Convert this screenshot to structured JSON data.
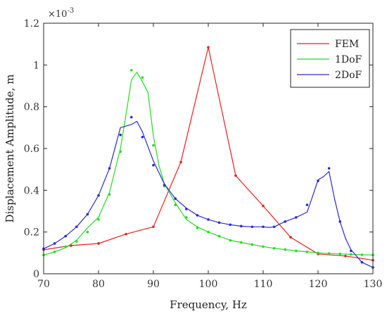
{
  "chart_data": {
    "type": "line",
    "title": "",
    "xlabel": "Frequency, Hz",
    "ylabel": "Displacement Amplitude, m",
    "y_exponent_label": "×10",
    "y_exponent_power": "-3",
    "xlim": [
      70,
      130
    ],
    "ylim": [
      0,
      1.2
    ],
    "xticks": [
      "70",
      "80",
      "90",
      "100",
      "110",
      "120",
      "130"
    ],
    "yticks": [
      "0",
      "0.2",
      "0.4",
      "0.6",
      "0.8",
      "1",
      "1.2"
    ],
    "grid": false,
    "legend_position": "top-right",
    "series": [
      {
        "name": "FEM",
        "color": "#e8201e",
        "line": {
          "x": [
            70,
            75,
            80,
            85,
            90,
            95,
            100,
            105,
            110,
            115,
            120,
            125,
            130
          ],
          "y": [
            0.115,
            0.135,
            0.145,
            0.19,
            0.225,
            0.535,
            1.085,
            0.47,
            0.325,
            0.175,
            0.095,
            0.085,
            0.065
          ]
        },
        "markers": {
          "x": [
            70,
            75,
            80,
            85,
            90,
            95,
            100,
            105,
            110,
            115,
            120,
            125,
            130
          ],
          "y": [
            0.115,
            0.135,
            0.145,
            0.19,
            0.225,
            0.535,
            1.085,
            0.47,
            0.325,
            0.175,
            0.095,
            0.085,
            0.065
          ]
        }
      },
      {
        "name": "1DoF",
        "color": "#22dd22",
        "line": {
          "x": [
            70,
            72,
            74,
            76,
            78,
            80,
            82,
            84,
            85,
            86,
            87,
            88,
            89,
            90,
            91,
            92,
            94,
            96,
            98,
            100,
            102,
            104,
            106,
            108,
            110,
            112,
            114,
            116,
            118,
            120,
            122,
            124,
            126,
            128,
            130
          ],
          "y": [
            0.09,
            0.105,
            0.125,
            0.16,
            0.22,
            0.27,
            0.39,
            0.6,
            0.76,
            0.93,
            0.965,
            0.92,
            0.87,
            0.66,
            0.52,
            0.43,
            0.34,
            0.26,
            0.225,
            0.2,
            0.18,
            0.16,
            0.15,
            0.14,
            0.13,
            0.122,
            0.116,
            0.11,
            0.105,
            0.1,
            0.097,
            0.095,
            0.093,
            0.091,
            0.09
          ]
        },
        "markers": {
          "x": [
            70,
            72,
            74,
            76,
            78,
            80,
            82,
            84,
            86,
            88,
            90,
            92,
            94,
            96,
            98,
            100,
            102,
            104,
            106,
            108,
            110,
            112,
            114,
            116,
            118,
            120,
            122,
            124,
            126,
            128,
            130
          ],
          "y": [
            0.09,
            0.105,
            0.13,
            0.155,
            0.2,
            0.26,
            0.38,
            0.585,
            0.975,
            0.94,
            0.615,
            0.42,
            0.33,
            0.27,
            0.22,
            0.2,
            0.18,
            0.16,
            0.15,
            0.14,
            0.13,
            0.122,
            0.116,
            0.11,
            0.105,
            0.1,
            0.097,
            0.095,
            0.093,
            0.091,
            0.09
          ]
        }
      },
      {
        "name": "2DoF",
        "color": "#2a2ad4",
        "line": {
          "x": [
            70,
            72,
            74,
            76,
            78,
            80,
            82,
            84,
            86,
            87,
            88,
            90,
            92,
            94,
            96,
            98,
            100,
            102,
            104,
            106,
            108,
            110,
            111,
            112,
            114,
            116,
            118,
            119,
            120,
            121,
            122,
            123,
            124,
            125,
            126,
            128,
            130
          ],
          "y": [
            0.12,
            0.145,
            0.18,
            0.225,
            0.285,
            0.375,
            0.505,
            0.7,
            0.715,
            0.73,
            0.68,
            0.54,
            0.43,
            0.36,
            0.315,
            0.28,
            0.26,
            0.245,
            0.235,
            0.228,
            0.225,
            0.225,
            0.222,
            0.225,
            0.25,
            0.27,
            0.295,
            0.37,
            0.45,
            0.465,
            0.49,
            0.36,
            0.25,
            0.17,
            0.115,
            0.055,
            0.03
          ]
        },
        "markers": {
          "x": [
            70,
            72,
            74,
            76,
            78,
            80,
            82,
            84,
            86,
            88,
            90,
            92,
            94,
            96,
            98,
            100,
            102,
            104,
            106,
            108,
            110,
            112,
            114,
            116,
            118,
            120,
            122,
            124,
            126,
            128,
            130
          ],
          "y": [
            0.12,
            0.145,
            0.18,
            0.225,
            0.285,
            0.375,
            0.505,
            0.665,
            0.75,
            0.655,
            0.52,
            0.425,
            0.36,
            0.31,
            0.28,
            0.26,
            0.245,
            0.235,
            0.228,
            0.225,
            0.225,
            0.225,
            0.25,
            0.27,
            0.33,
            0.445,
            0.505,
            0.25,
            0.11,
            0.055,
            0.03
          ]
        }
      }
    ]
  }
}
